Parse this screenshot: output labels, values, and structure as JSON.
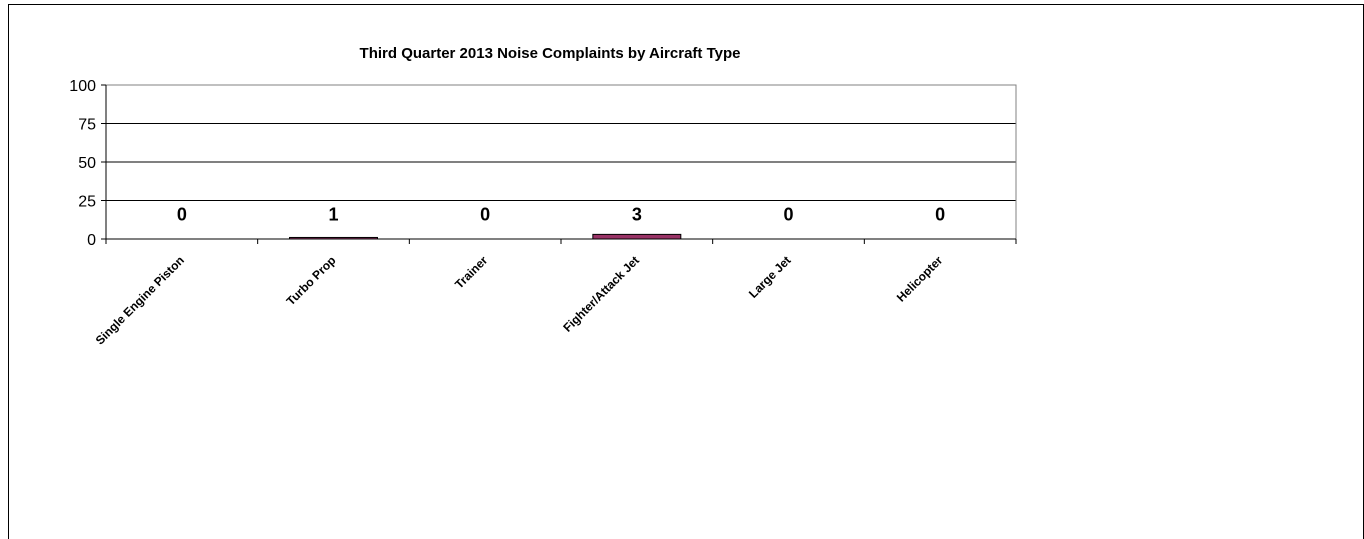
{
  "chart_data": {
    "type": "bar",
    "title": "Third Quarter 2013 Noise Complaints by Aircraft Type",
    "xlabel": "",
    "ylabel": "",
    "categories": [
      "Single Engine Piston",
      "Turbo Prop",
      "Trainer",
      "Fighter/Attack Jet",
      "Large Jet",
      "Helicopter"
    ],
    "values": [
      0,
      1,
      0,
      3,
      0,
      0
    ],
    "data_labels": [
      "0",
      "1",
      "0",
      "3",
      "0",
      "0"
    ],
    "yticks": [
      "0",
      "25",
      "50",
      "75",
      "100"
    ],
    "ylim": [
      0,
      100
    ],
    "grid": true,
    "legend": "none",
    "colors": {
      "bar_fill": "#993366",
      "bar_stroke": "#000000",
      "gridline": "#000000",
      "plot_border": "#808080",
      "text": "#000000"
    }
  }
}
